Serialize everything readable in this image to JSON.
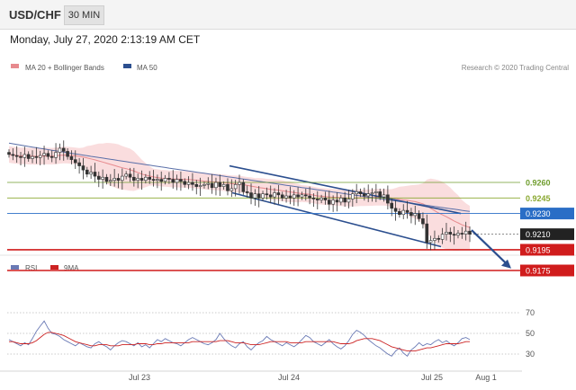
{
  "header": {
    "symbol": "USD/CHF",
    "timeframe": "30 MIN",
    "datetime": "Monday, July 27, 2020 2:13:19 AM CET"
  },
  "legend": {
    "ma20": {
      "label": "MA 20 + Bollinger Bands",
      "color": "#e78a8e"
    },
    "ma50": {
      "label": "MA 50",
      "color": "#2c4f8f"
    },
    "credit": "Research © 2020 Trading Central"
  },
  "rsi_legend": {
    "rsi": {
      "label": "RSI",
      "color": "#6a7ab5"
    },
    "ma9": {
      "label": "9MA",
      "color": "#cc2222"
    }
  },
  "chart_data": [
    {
      "type": "candlestick",
      "ylim": [
        0.9158,
        0.93
      ],
      "levels": [
        {
          "value": 0.926,
          "label": "0.9260",
          "style": "resistance-green",
          "color": "#6f9d2e"
        },
        {
          "value": 0.9245,
          "label": "0.9245",
          "style": "resistance-green",
          "color": "#8aa830"
        },
        {
          "value": 0.923,
          "label": "0.9230",
          "style": "pivot-blue",
          "color": "#2a6ec6"
        },
        {
          "value": 0.921,
          "label": "0.9210",
          "style": "last-price",
          "color": "#222222"
        },
        {
          "value": 0.9195,
          "label": "0.9195",
          "style": "support-red",
          "color": "#d01c1c"
        },
        {
          "value": 0.9175,
          "label": "0.9175",
          "style": "support-red",
          "color": "#d01c1c"
        }
      ],
      "x_ticks": [
        "Jul 23",
        "Jul 24",
        "Jul 25",
        "Aug 1"
      ],
      "close": [
        0.9287,
        0.9286,
        0.9285,
        0.9284,
        0.9287,
        0.9283,
        0.9285,
        0.9284,
        0.9286,
        0.9288,
        0.9285,
        0.9284,
        0.9289,
        0.9293,
        0.929,
        0.9285,
        0.9282,
        0.9279,
        0.9276,
        0.9272,
        0.9268,
        0.927,
        0.9266,
        0.9263,
        0.9265,
        0.9261,
        0.9262,
        0.9264,
        0.9262,
        0.9266,
        0.9268,
        0.9265,
        0.9262,
        0.9264,
        0.9262,
        0.9265,
        0.9263,
        0.9262,
        0.9263,
        0.9261,
        0.9264,
        0.9263,
        0.926,
        0.9263,
        0.9261,
        0.9258,
        0.926,
        0.9258,
        0.9256,
        0.9257,
        0.9258,
        0.9259,
        0.9255,
        0.926,
        0.9256,
        0.9258,
        0.9252,
        0.9254,
        0.9258,
        0.926,
        0.9251,
        0.925,
        0.9245,
        0.9249,
        0.9245,
        0.9249,
        0.9248,
        0.9246,
        0.925,
        0.9248,
        0.9245,
        0.9247,
        0.9245,
        0.9248,
        0.9246,
        0.9248,
        0.9247,
        0.9245,
        0.9244,
        0.9243,
        0.9245,
        0.9243,
        0.9239,
        0.9243,
        0.9241,
        0.9245,
        0.9241,
        0.9244,
        0.9249,
        0.9251,
        0.9249,
        0.9247,
        0.9249,
        0.925,
        0.9251,
        0.9246,
        0.9248,
        0.924,
        0.9235,
        0.9232,
        0.9229,
        0.9233,
        0.9231,
        0.9228,
        0.923,
        0.9225,
        0.922,
        0.9202,
        0.9204,
        0.9206,
        0.9205,
        0.921,
        0.9212,
        0.921,
        0.9209,
        0.9211,
        0.921,
        0.9213,
        0.921
      ],
      "ma20_last": 0.9222,
      "ma50_last": 0.9232,
      "arrow": {
        "from": 0.9214,
        "to": 0.9177
      }
    },
    {
      "type": "line",
      "name": "RSI",
      "ylim": [
        18,
        82
      ],
      "y_ticks": [
        70,
        50,
        30
      ],
      "series": [
        {
          "name": "RSI",
          "color": "#6a7ab5",
          "values": [
            44,
            42,
            40,
            38,
            41,
            39,
            45,
            52,
            57,
            62,
            55,
            50,
            49,
            47,
            44,
            42,
            40,
            38,
            41,
            39,
            37,
            36,
            40,
            42,
            39,
            37,
            34,
            38,
            41,
            43,
            42,
            40,
            38,
            41,
            37,
            39,
            36,
            40,
            44,
            42,
            45,
            43,
            41,
            40,
            38,
            41,
            44,
            46,
            44,
            42,
            40,
            39,
            41,
            44,
            50,
            45,
            41,
            38,
            36,
            40,
            42,
            37,
            34,
            38,
            41,
            43,
            47,
            44,
            42,
            40,
            38,
            41,
            39,
            37,
            40,
            44,
            48,
            46,
            42,
            40,
            38,
            41,
            44,
            40,
            37,
            35,
            38,
            43,
            49,
            53,
            51,
            48,
            44,
            41,
            38,
            36,
            33,
            30,
            28,
            33,
            36,
            31,
            28,
            34,
            37,
            41,
            38,
            40,
            39,
            42,
            44,
            41,
            43,
            40,
            38,
            41,
            45,
            46,
            44
          ]
        },
        {
          "name": "9MA",
          "color": "#cc2222",
          "values": [
            42,
            42,
            41,
            40,
            40,
            40,
            41,
            43,
            46,
            49,
            51,
            51,
            50,
            49,
            48,
            46,
            44,
            42,
            41,
            40,
            39,
            38,
            38,
            39,
            39,
            39,
            38,
            38,
            38,
            39,
            39,
            39,
            39,
            40,
            40,
            40,
            39,
            39,
            40,
            40,
            41,
            41,
            41,
            41,
            41,
            41,
            41,
            42,
            42,
            42,
            42,
            42,
            42,
            42,
            43,
            43,
            43,
            42,
            41,
            41,
            41,
            40,
            39,
            39,
            39,
            40,
            41,
            42,
            42,
            42,
            42,
            42,
            41,
            41,
            41,
            41,
            42,
            42,
            42,
            42,
            42,
            42,
            42,
            42,
            41,
            40,
            40,
            40,
            41,
            43,
            44,
            45,
            45,
            45,
            44,
            43,
            41,
            39,
            37,
            36,
            35,
            34,
            33,
            33,
            33,
            34,
            35,
            36,
            36,
            37,
            38,
            39,
            40,
            40,
            40,
            40,
            41,
            42,
            42
          ]
        }
      ]
    }
  ]
}
